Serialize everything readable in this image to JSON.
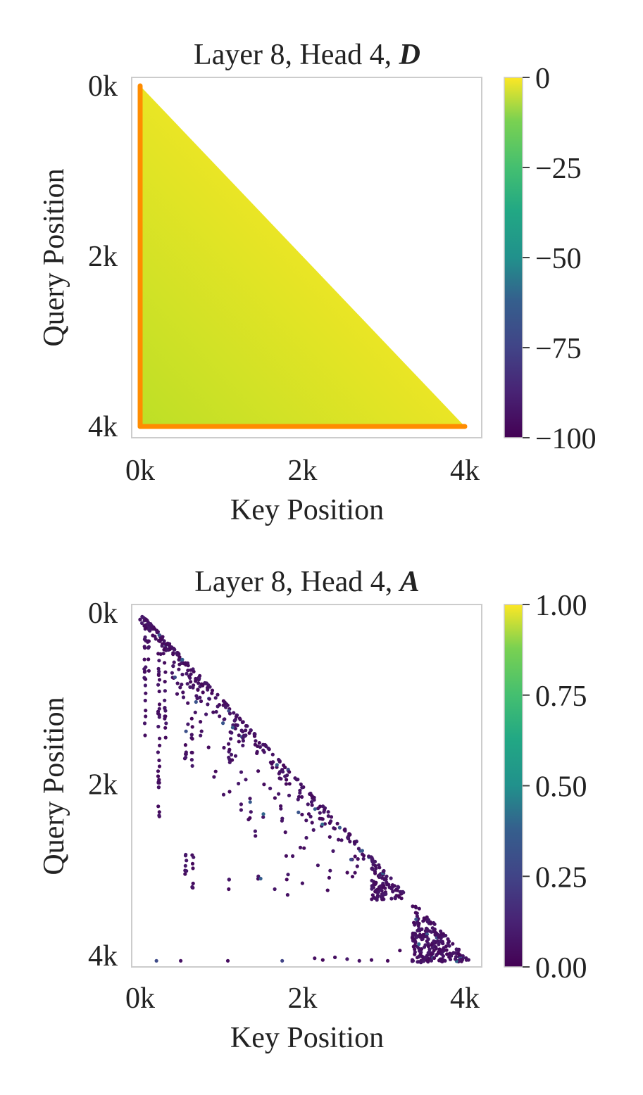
{
  "chart_data": [
    {
      "type": "heatmap",
      "title": "Layer 8, Head 4, ",
      "title_symbol": "D",
      "xlabel": "Key Position",
      "ylabel": "Query Position",
      "xticks": [
        "0k",
        "2k",
        "4k"
      ],
      "yticks": [
        "0k",
        "2k",
        "4k"
      ],
      "x_range": [
        0,
        4200
      ],
      "y_range": [
        0,
        4200
      ],
      "mask": "lower-triangular (causal)",
      "colormap": "viridis",
      "colorbar_range": [
        -100,
        0
      ],
      "colorbar_ticks": [
        "0",
        "−25",
        "−50",
        "−75",
        "−100"
      ],
      "colorbar_tick_values": [
        0,
        -25,
        -50,
        -75,
        -100
      ],
      "fill_value_approx": -3,
      "edge_highlight": {
        "color": "#ff8c00",
        "left_edge_value_approx": -12,
        "bottom_edge_value_approx": -12
      },
      "grid": false
    },
    {
      "type": "scatter",
      "title": "Layer 8, Head 4, ",
      "title_symbol": "A",
      "xlabel": "Key Position",
      "ylabel": "Query Position",
      "xticks": [
        "0k",
        "2k",
        "4k"
      ],
      "yticks": [
        "0k",
        "2k",
        "4k"
      ],
      "x_range": [
        0,
        4200
      ],
      "y_range": [
        0,
        4200
      ],
      "colormap": "viridis",
      "colorbar_range": [
        0.0,
        1.0
      ],
      "colorbar_ticks": [
        "1.00",
        "0.75",
        "0.50",
        "0.25",
        "0.00"
      ],
      "colorbar_tick_values": [
        1.0,
        0.75,
        0.5,
        0.25,
        0.0
      ],
      "points_description": "sparse attention points concentrated along the diagonal key≈query, with dense clusters near key 2900-3200/query 3000-3300 and key 3400-4100/query 3500-4100, plus vertical stripes of points at key columns ~200, 300, 550, 650, 1100 and scattered points near query 4050",
      "diagonal_segments": [
        {
          "q0": 20,
          "q1": 600,
          "width": 120,
          "density": 0.9
        },
        {
          "q0": 600,
          "q1": 1400,
          "width": 300,
          "density": 0.6
        },
        {
          "q0": 1400,
          "q1": 2200,
          "width": 250,
          "density": 0.5
        },
        {
          "q0": 2200,
          "q1": 2900,
          "width": 300,
          "density": 0.5
        }
      ],
      "clusters": [
        {
          "k0": 2850,
          "k1": 3250,
          "q0": 2800,
          "q1": 3350,
          "density": 0.7
        },
        {
          "k0": 3350,
          "k1": 4080,
          "q0": 3380,
          "q1": 4080,
          "density": 0.85
        }
      ],
      "column_stripes": [
        {
          "k": 60,
          "q0": 100,
          "q1": 1500
        },
        {
          "k": 100,
          "q0": 300,
          "q1": 700
        },
        {
          "k": 230,
          "q0": 550,
          "q1": 2450
        },
        {
          "k": 310,
          "q0": 800,
          "q1": 1500
        },
        {
          "k": 560,
          "q0": 1300,
          "q1": 1700
        },
        {
          "k": 560,
          "q0": 2800,
          "q1": 3200
        },
        {
          "k": 640,
          "q0": 1300,
          "q1": 1800
        },
        {
          "k": 650,
          "q0": 2800,
          "q1": 3250
        },
        {
          "k": 1100,
          "q0": 1500,
          "q1": 1800
        },
        {
          "k": 1100,
          "q0": 3100,
          "q1": 3250
        }
      ],
      "bottom_row_points": [
        {
          "k": 200,
          "q": 4060
        },
        {
          "k": 500,
          "q": 4060
        },
        {
          "k": 1080,
          "q": 4060
        },
        {
          "k": 1750,
          "q": 4060,
          "v": 0.2
        },
        {
          "k": 2150,
          "q": 4030
        },
        {
          "k": 2250,
          "q": 4050
        },
        {
          "k": 2400,
          "q": 4020
        },
        {
          "k": 2550,
          "q": 4040
        },
        {
          "k": 2700,
          "q": 4060
        },
        {
          "k": 2850,
          "q": 4050
        },
        {
          "k": 3050,
          "q": 4060
        },
        {
          "k": 3200,
          "q": 3940
        }
      ],
      "grid": false
    }
  ]
}
